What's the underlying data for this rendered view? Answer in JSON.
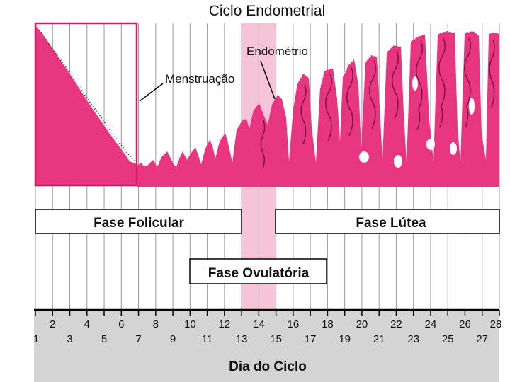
{
  "title": "Ciclo Endometrial",
  "annotations": {
    "endometrium": "Endométrio",
    "menstruation": "Menstruação"
  },
  "phases": {
    "follicular": "Fase Folicular",
    "ovulatory": "Fase Ovulatória",
    "luteal": "Fase Lútea"
  },
  "axis": {
    "title": "Dia do Ciclo",
    "days": [
      "1",
      "2",
      "3",
      "4",
      "5",
      "6",
      "7",
      "8",
      "9",
      "10",
      "11",
      "12",
      "13",
      "14",
      "15",
      "16",
      "17",
      "18",
      "19",
      "20",
      "21",
      "22",
      "23",
      "24",
      "25",
      "26",
      "27",
      "28"
    ]
  },
  "colors": {
    "tissue": "#e8357f",
    "tissue_dark": "#b01c5c",
    "ovulation_band": "#f6c3d8",
    "axis_band": "#d4d4d4",
    "grid": "#9a9a9a"
  }
}
